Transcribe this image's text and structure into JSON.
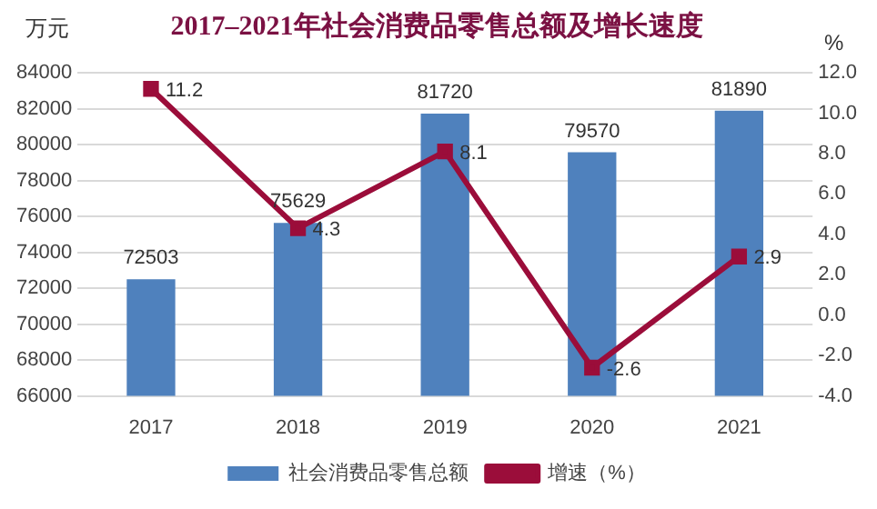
{
  "chart_data": {
    "type": "bar",
    "title": "2017–2021年社会消费品零售总额及增长速度",
    "ylabel": "万元",
    "y2label": "%",
    "categories": [
      "2017",
      "2018",
      "2019",
      "2020",
      "2021"
    ],
    "series": [
      {
        "name": "社会消费品零售总额",
        "color": "#4f81bd",
        "values": [
          72503,
          75629,
          81720,
          79570,
          81890
        ]
      },
      {
        "name": "增速（%）",
        "type": "line",
        "axis": "y2",
        "color": "#9b0d3a",
        "values": [
          11.2,
          4.3,
          8.1,
          -2.6,
          2.9
        ]
      }
    ],
    "ylim": [
      66000,
      84000
    ],
    "yticks": [
      66000,
      68000,
      70000,
      72000,
      74000,
      76000,
      78000,
      80000,
      82000,
      84000
    ],
    "y2lim": [
      -4,
      12
    ],
    "y2ticks": [
      {
        "value": -4,
        "label": "-4.0"
      },
      {
        "value": -2,
        "label": "-2.0"
      },
      {
        "value": 0,
        "label": "0.0"
      },
      {
        "value": 2,
        "label": "2.0"
      },
      {
        "value": 4,
        "label": "4.0"
      },
      {
        "value": 6,
        "label": "6.0"
      },
      {
        "value": 8,
        "label": "8.0"
      },
      {
        "value": 10,
        "label": "10.0"
      },
      {
        "value": 12,
        "label": "12.0"
      }
    ],
    "grid": "y",
    "legend": "bottom",
    "data_labels": true,
    "marker": "square",
    "line_style": "solid"
  }
}
